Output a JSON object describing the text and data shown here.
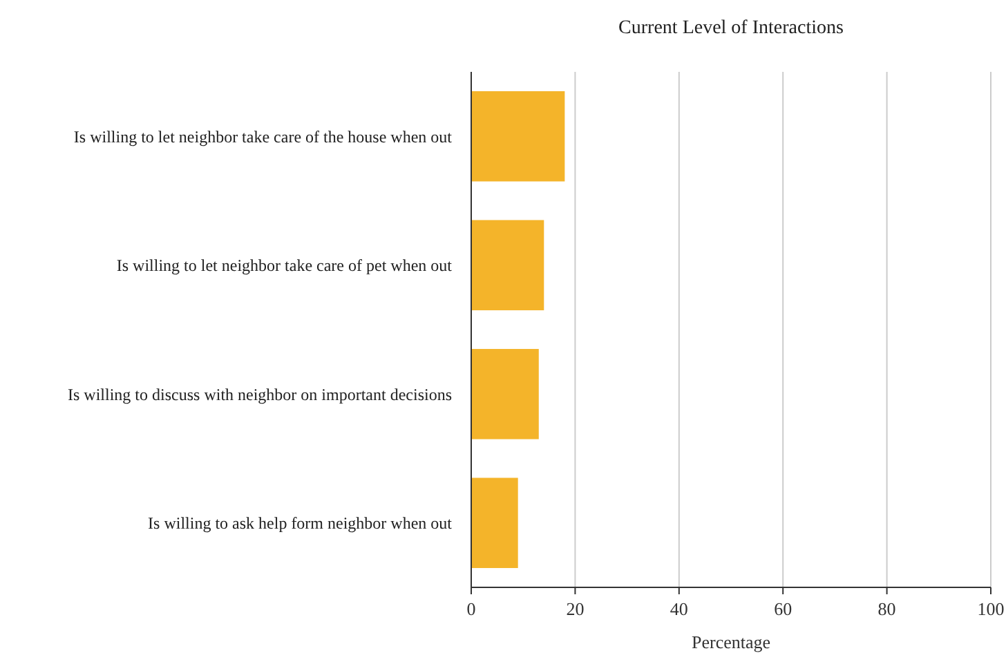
{
  "chart_data": {
    "type": "bar",
    "orientation": "horizontal",
    "title": "Current Level of Interactions",
    "xlabel": "Percentage",
    "categories": [
      "Is willing to let neighbor take care of the house when out",
      "Is willing to let neighbor take care of pet when out",
      "Is willing to discuss with neighbor on important decisions",
      "Is willing to ask help form neighbor when out"
    ],
    "values": [
      18,
      14,
      13,
      9
    ],
    "color": "#f4b42a",
    "xlim": [
      0,
      100
    ],
    "xticks": [
      0,
      20,
      40,
      60,
      80,
      100
    ],
    "grid": "x"
  }
}
